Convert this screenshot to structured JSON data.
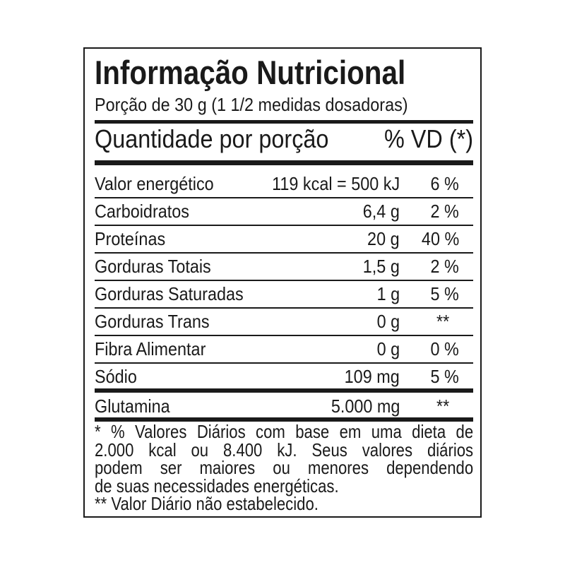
{
  "title": "Informação Nutricional",
  "portion": "Porção de 30 g (1 1/2 medidas dosadoras)",
  "header": {
    "quantity": "Quantidade por porção",
    "vd": "% VD (*)"
  },
  "rows": [
    {
      "label": "Valor energético",
      "amount": "119 kcal = 500 kJ",
      "vd": "6 %"
    },
    {
      "label": "Carboidratos",
      "amount": "6,4 g",
      "vd": "2 %"
    },
    {
      "label": "Proteínas",
      "amount": "20 g",
      "vd": "40 %"
    },
    {
      "label": "Gorduras Totais",
      "amount": "1,5 g",
      "vd": "2 %"
    },
    {
      "label": "Gorduras Saturadas",
      "amount": "1 g",
      "vd": "5 %"
    },
    {
      "label": "Gorduras Trans",
      "amount": "0 g",
      "vd": "**"
    },
    {
      "label": "Fibra Alimentar",
      "amount": "0 g",
      "vd": "0 %"
    },
    {
      "label": "Sódio",
      "amount": "109 mg",
      "vd": "5 %"
    },
    {
      "label": "Glutamina",
      "amount": "5.000 mg",
      "vd": "**"
    }
  ],
  "footnote_lines": [
    "* % Valores Diários com base em uma dieta de",
    "2.000 kcal ou 8.400 kJ.  Seus valores diários",
    "podem ser maiores ou menores dependendo",
    "de suas necessidades energéticas.",
    "** Valor Diário não estabelecido."
  ]
}
